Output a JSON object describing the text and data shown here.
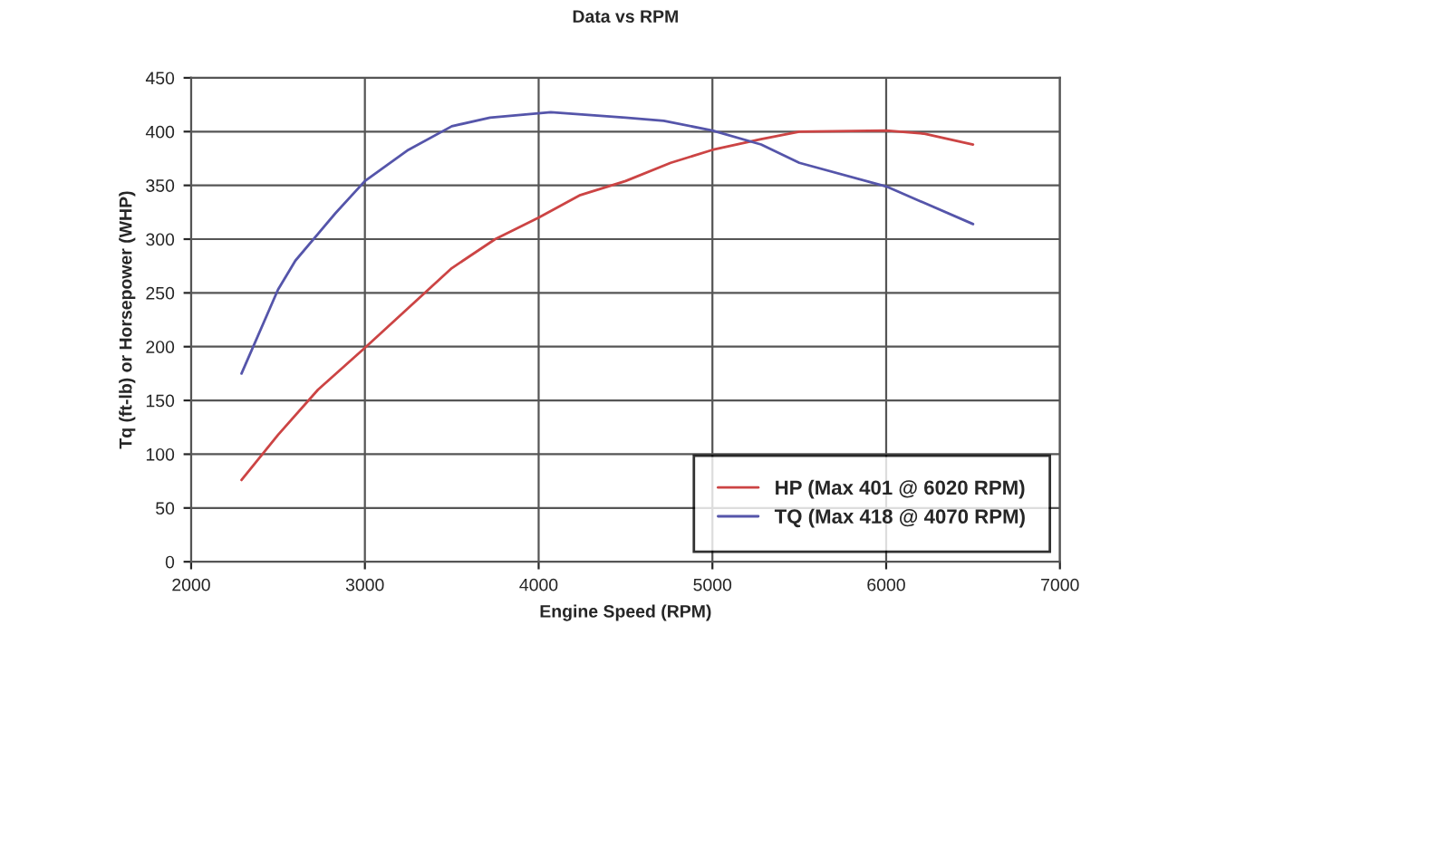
{
  "chart_data": {
    "type": "line",
    "title": "Data vs RPM",
    "xlabel": "Engine Speed (RPM)",
    "ylabel": "Tq (ft-lb) or Horsepower (WHP)",
    "xlim": [
      2000,
      7000
    ],
    "xticks": [
      2000,
      3000,
      4000,
      5000,
      6000,
      7000
    ],
    "ylim": [
      0,
      450
    ],
    "yticks": [
      0,
      50,
      100,
      150,
      200,
      250,
      300,
      350,
      400,
      450
    ],
    "grid": true,
    "legend": "bottom right",
    "series": [
      {
        "name": "HP (Max 401 @ 6020 RPM)",
        "color": "#cc4444",
        "x": [
          2290,
          2500,
          2730,
          3000,
          3250,
          3500,
          3750,
          4000,
          4240,
          4500,
          4760,
          5000,
          5280,
          5500,
          6000,
          6220,
          6500
        ],
        "values": [
          76,
          118,
          160,
          199,
          236,
          273,
          300,
          320,
          341,
          354,
          371,
          383,
          393,
          400,
          401,
          398,
          388
        ]
      },
      {
        "name": "TQ (Max 418 @ 4070 RPM)",
        "color": "#5555aa",
        "x": [
          2290,
          2500,
          2600,
          2830,
          3000,
          3250,
          3500,
          3720,
          4070,
          4500,
          4720,
          5000,
          5280,
          5500,
          6000,
          6500
        ],
        "values": [
          175,
          253,
          280,
          324,
          354,
          383,
          405,
          413,
          418,
          413,
          410,
          401,
          388,
          371,
          349,
          314
        ]
      }
    ]
  }
}
